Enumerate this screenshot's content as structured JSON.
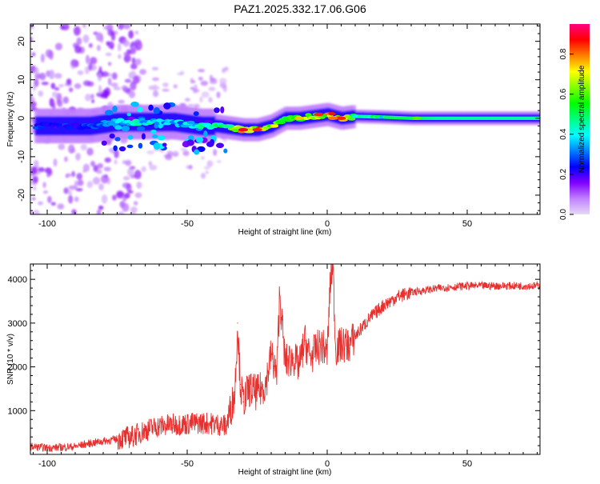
{
  "figure_title": "PAZ1.2025.332.17.06.G06",
  "colors": {
    "snr_line": "#e8312f",
    "frame": "#000000"
  },
  "chart_data": [
    {
      "type": "heatmap",
      "title": "",
      "xlabel": "Height of straight line (km)",
      "ylabel": "Frequency (Hz)",
      "xlim": [
        -106,
        76
      ],
      "ylim": [
        -25,
        24.5
      ],
      "xticks": [
        -100,
        -50,
        0,
        50
      ],
      "yticks": [
        -20,
        -10,
        0,
        10,
        20
      ],
      "colorbar": {
        "label": "Normalized spectral amplitude",
        "range": [
          0,
          0.95
        ],
        "ticks": [
          "0.0",
          "0.2",
          "0.4",
          "0.6",
          "0.8"
        ],
        "tick_values": [
          0.0,
          0.2,
          0.4,
          0.6,
          0.8
        ],
        "colors": [
          "#e6d9f5",
          "#c080ff",
          "#8000ff",
          "#0000ff",
          "#0080ff",
          "#00ffff",
          "#00ff80",
          "#00ff00",
          "#80ff00",
          "#ffff00",
          "#ff8000",
          "#ff0000",
          "#ff0080"
        ]
      },
      "ridge": {
        "description": "dominant frequency track vs height",
        "x": [
          -104,
          -95,
          -85,
          -75,
          -65,
          -55,
          -45,
          -40,
          -35,
          -30,
          -25,
          -20,
          -15,
          -10,
          -5,
          0,
          5,
          10,
          20,
          30,
          40,
          50,
          60,
          76
        ],
        "freq": [
          -2,
          -2,
          -2,
          -1,
          -1,
          -1,
          -2,
          -2,
          -2.5,
          -3,
          -3,
          -2,
          0,
          0,
          0.5,
          1,
          0,
          0.5,
          0.3,
          0,
          0,
          0,
          0,
          0
        ],
        "amplitude": [
          0.3,
          0.25,
          0.3,
          0.4,
          0.45,
          0.35,
          0.45,
          0.5,
          0.55,
          0.75,
          0.85,
          0.7,
          0.6,
          0.65,
          0.7,
          0.75,
          0.85,
          0.5,
          0.5,
          0.5,
          0.45,
          0.45,
          0.45,
          0.45
        ]
      }
    },
    {
      "type": "line",
      "title": "",
      "xlabel": "Height of straight line (km)",
      "ylabel": "SNR (10 * v/v)",
      "xlim": [
        -106,
        76
      ],
      "ylim": [
        0,
        4350
      ],
      "xticks": [
        -100,
        -50,
        0,
        50
      ],
      "yticks": [
        1000,
        2000,
        3000,
        4000
      ],
      "series": [
        {
          "name": "SNR",
          "x": [
            -106,
            -100,
            -95,
            -90,
            -85,
            -80,
            -75,
            -70,
            -65,
            -60,
            -55,
            -50,
            -45,
            -40,
            -36,
            -33,
            -32,
            -31,
            -30,
            -28,
            -25,
            -22,
            -20,
            -18,
            -17,
            -15,
            -12,
            -10,
            -8,
            -6,
            -4,
            -2,
            0,
            1,
            2,
            3,
            5,
            8,
            10,
            15,
            20,
            25,
            30,
            40,
            50,
            60,
            70,
            76
          ],
          "y": [
            180,
            150,
            160,
            180,
            250,
            300,
            350,
            400,
            550,
            650,
            680,
            700,
            720,
            700,
            650,
            1400,
            3000,
            1600,
            1200,
            1500,
            1400,
            1600,
            2300,
            1800,
            3700,
            2100,
            2200,
            2000,
            2600,
            2200,
            2400,
            2500,
            2300,
            3800,
            4400,
            2400,
            2500,
            2500,
            2700,
            3100,
            3400,
            3600,
            3700,
            3800,
            3850,
            3850,
            3850,
            3850
          ],
          "description": "noisy trace; baseline with rapid oscillations, rising from ~200 at -106 km to a plateau near 3800-3900 above 30 km"
        }
      ]
    }
  ]
}
